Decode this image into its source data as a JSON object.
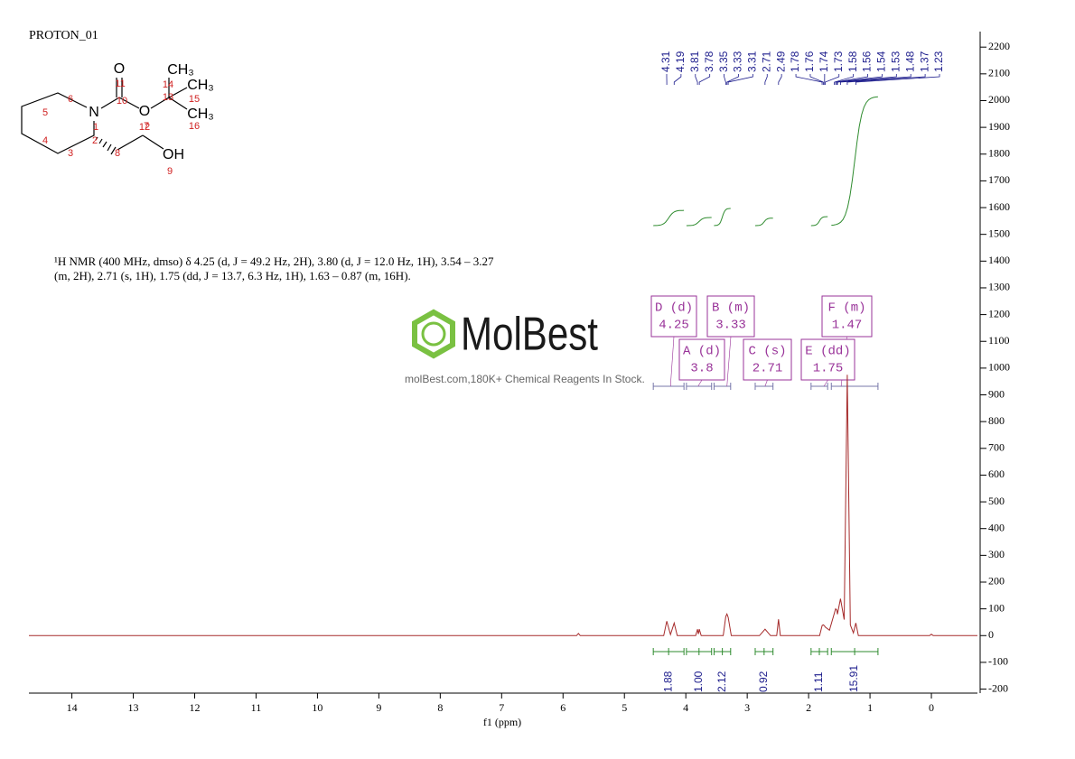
{
  "chart_data": {
    "type": "nmr",
    "title": "PROTON_01",
    "xlabel": "f1 (ppm)",
    "xlim": [
      14.7,
      -0.75
    ],
    "xticks": [
      14,
      13,
      12,
      11,
      10,
      9,
      8,
      7,
      6,
      5,
      4,
      3,
      2,
      1,
      0
    ],
    "ylim": [
      -215,
      2258
    ],
    "yticks": [
      -200,
      -100,
      0,
      100,
      200,
      300,
      400,
      500,
      600,
      700,
      800,
      900,
      1000,
      1100,
      1200,
      1300,
      1400,
      1500,
      1600,
      1700,
      1800,
      1900,
      2000,
      2100,
      2200
    ],
    "series": [
      {
        "color": "#a52a2a",
        "x": [
          14.7,
          5.78,
          5.75,
          5.72,
          4.36,
          4.31,
          4.25,
          4.19,
          4.14,
          3.84,
          3.81,
          3.795,
          3.78,
          3.75,
          3.39,
          3.35,
          3.33,
          3.31,
          3.26,
          2.8,
          2.71,
          2.62,
          2.52,
          2.49,
          2.46,
          1.82,
          1.78,
          1.76,
          1.74,
          1.73,
          1.66,
          1.58,
          1.56,
          1.54,
          1.53,
          1.48,
          1.42,
          1.37,
          1.32,
          1.27,
          1.23,
          1.19,
          0.03,
          0,
          -0.03,
          -0.75
        ],
        "values": [
          0,
          0,
          8,
          0,
          0,
          54,
          4,
          47,
          0,
          0,
          24,
          6,
          24,
          0,
          0,
          71,
          81,
          68,
          0,
          0,
          24,
          0,
          0,
          61,
          0,
          0,
          38,
          40,
          36,
          32,
          20,
          85,
          100,
          95,
          80,
          138,
          60,
          975,
          40,
          10,
          47,
          0,
          0,
          5,
          0,
          0
        ]
      }
    ],
    "peak_labels": [
      4.31,
      4.19,
      3.81,
      3.78,
      3.35,
      3.33,
      3.31,
      2.71,
      2.49,
      1.78,
      1.76,
      1.74,
      1.73,
      1.58,
      1.56,
      1.54,
      1.53,
      1.48,
      1.37,
      1.23
    ],
    "peak_label_color": "#1c1c8c",
    "multiplets": [
      {
        "name": "D (d)",
        "shift": 4.25,
        "range": [
          4.53,
          4.03
        ]
      },
      {
        "name": "B (m)",
        "shift": 3.33,
        "range": [
          3.54,
          3.27
        ]
      },
      {
        "name": "F (m)",
        "shift": 1.47,
        "range": [
          1.63,
          0.87
        ]
      },
      {
        "name": "A (d)",
        "shift": 3.8,
        "range": [
          3.99,
          3.58
        ]
      },
      {
        "name": "C (s)",
        "shift": 2.71,
        "range": [
          2.87,
          2.58
        ]
      },
      {
        "name": "E (dd)",
        "shift": 1.75,
        "range": [
          1.96,
          1.69
        ]
      }
    ],
    "multiplet_color": "#993399",
    "integrals": {
      "color": "#2e8b2e",
      "values": [
        1.88,
        1,
        2.12,
        0.92,
        1.11,
        15.91
      ],
      "value_labels": [
        "1.88",
        "1.00",
        "2.12",
        "0.92",
        "1.11",
        "15.91"
      ],
      "ranges": [
        [
          4.53,
          4.03
        ],
        [
          3.99,
          3.58
        ],
        [
          3.54,
          3.27
        ],
        [
          2.87,
          2.58
        ],
        [
          1.96,
          1.69
        ],
        [
          1.63,
          0.87
        ]
      ]
    },
    "description": [
      "¹H NMR (400 MHz, dmso) δ 4.25 (d, J = 49.2 Hz, 2H), 3.80 (d, J = 12.0 Hz, 1H), 3.54 – 3.27",
      "(m, 2H), 2.71 (s, 1H), 1.75 (dd, J = 13.7, 6.3 Hz, 1H), 1.63 – 0.87 (m, 16H)."
    ],
    "watermark": {
      "brand": "MolBest",
      "tagline": "molBest.com,180K+ Chemical Reagents In Stock."
    },
    "structure": {
      "atoms": [
        "O",
        "N",
        "O",
        "CH₃",
        "CH₃",
        "CH₃",
        "OH"
      ],
      "numbers": [
        "11",
        "10",
        "1",
        "12",
        "13",
        "14",
        "15",
        "16",
        "6",
        "5",
        "4",
        "3",
        "2",
        "8",
        "7",
        "9"
      ]
    }
  }
}
